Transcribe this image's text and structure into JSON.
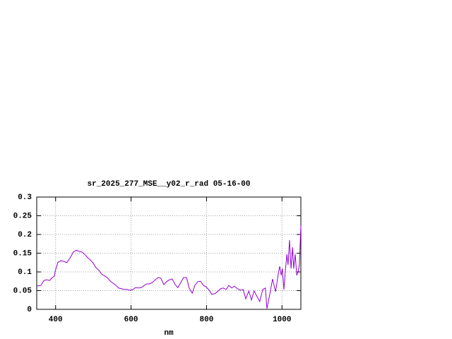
{
  "chart_data": {
    "type": "line",
    "title": "sr_2025_277_MSE__y02_r_rad 05-16-00",
    "x_label": "nm",
    "xlim": [
      350,
      1050
    ],
    "xticks": [
      400,
      600,
      800,
      1000
    ],
    "ylim": [
      0,
      0.3
    ],
    "yticks": [
      0,
      0.05,
      0.1,
      0.15,
      0.2,
      0.25,
      0.3
    ],
    "grid": true,
    "x": [
      350,
      361,
      369,
      376,
      384,
      389,
      397,
      399,
      406,
      414,
      421,
      430,
      440,
      447,
      455,
      462,
      470,
      477,
      485,
      492,
      500,
      507,
      515,
      522,
      530,
      537,
      545,
      552,
      560,
      567,
      575,
      582,
      590,
      597,
      605,
      612,
      620,
      627,
      635,
      642,
      649,
      657,
      664,
      672,
      679,
      687,
      694,
      702,
      709,
      717,
      724,
      732,
      739,
      747,
      754,
      762,
      769,
      777,
      784,
      792,
      799,
      807,
      814,
      822,
      829,
      837,
      844,
      852,
      859,
      867,
      874,
      882,
      889,
      897,
      904,
      912,
      919,
      926,
      934,
      941,
      949,
      956,
      960,
      968,
      975,
      983,
      990,
      994,
      998,
      1001,
      1005,
      1009,
      1013,
      1016,
      1020,
      1024,
      1028,
      1031,
      1035,
      1039,
      1043,
      1046,
      1050
    ],
    "series": [
      {
        "color": "#9400d3",
        "values": [
          0.062,
          0.064,
          0.077,
          0.079,
          0.077,
          0.083,
          0.089,
          0.102,
          0.125,
          0.13,
          0.128,
          0.125,
          0.14,
          0.153,
          0.158,
          0.155,
          0.153,
          0.147,
          0.138,
          0.132,
          0.123,
          0.111,
          0.104,
          0.094,
          0.089,
          0.085,
          0.075,
          0.07,
          0.064,
          0.057,
          0.055,
          0.053,
          0.053,
          0.051,
          0.053,
          0.058,
          0.057,
          0.058,
          0.064,
          0.068,
          0.068,
          0.072,
          0.079,
          0.085,
          0.083,
          0.066,
          0.074,
          0.079,
          0.081,
          0.066,
          0.058,
          0.072,
          0.085,
          0.085,
          0.057,
          0.043,
          0.064,
          0.074,
          0.075,
          0.064,
          0.06,
          0.051,
          0.04,
          0.042,
          0.047,
          0.055,
          0.057,
          0.053,
          0.064,
          0.057,
          0.062,
          0.055,
          0.051,
          0.053,
          0.028,
          0.049,
          0.025,
          0.049,
          0.034,
          0.021,
          0.053,
          0.057,
          0.002,
          0.042,
          0.081,
          0.047,
          0.094,
          0.115,
          0.091,
          0.109,
          0.053,
          0.104,
          0.147,
          0.119,
          0.185,
          0.109,
          0.166,
          0.109,
          0.147,
          0.091,
          0.1,
          0.119,
          0.223
        ]
      }
    ]
  }
}
